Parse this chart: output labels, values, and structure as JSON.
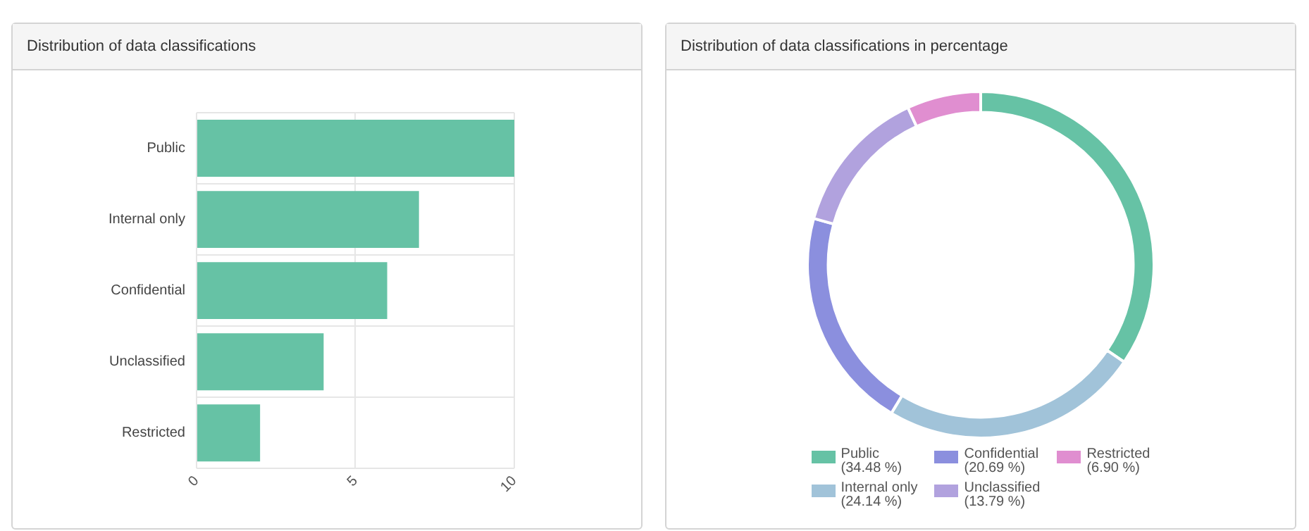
{
  "chart_data": [
    {
      "type": "bar",
      "title": "Distribution of data classifications",
      "orientation": "horizontal",
      "categories": [
        "Public",
        "Internal only",
        "Confidential",
        "Unclassified",
        "Restricted"
      ],
      "values": [
        10,
        7,
        6,
        4,
        2
      ],
      "color": "#66c2a5",
      "xlim": [
        0,
        10
      ],
      "xticks": [
        0,
        5,
        10
      ],
      "grid": true
    },
    {
      "type": "donut",
      "title": "Distribution of data classifications in percentage",
      "categories": [
        "Public",
        "Internal only",
        "Confidential",
        "Unclassified",
        "Restricted"
      ],
      "values": [
        34.48,
        24.14,
        20.69,
        13.79,
        6.9
      ],
      "colors": [
        "#66c2a5",
        "#a1c3d9",
        "#8b8fde",
        "#b1a2de",
        "#e08ed0"
      ],
      "value_labels": [
        "(34.48 %)",
        "(24.14 %)",
        "(20.69 %)",
        "(13.79 %)",
        "(6.90 %)"
      ],
      "legend": "bottom"
    }
  ]
}
